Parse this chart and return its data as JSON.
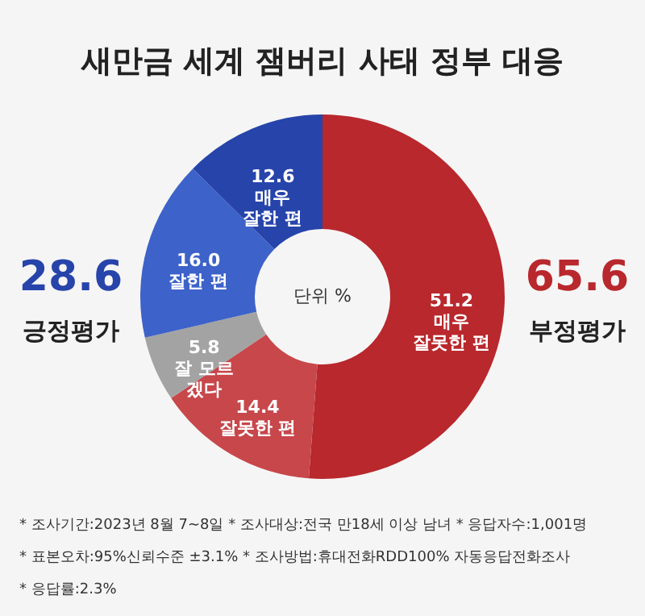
{
  "chart_data": {
    "type": "donut",
    "title": "새만금 세계 잼버리 사태 정부 대응",
    "categories": [
      "매우 잘못한 편",
      "잘못한 편",
      "잘 모르겠다",
      "잘한 편",
      "매우 잘한 편"
    ],
    "values": [
      51.2,
      14.4,
      5.8,
      16.0,
      12.6
    ],
    "colors": [
      "#b8282d",
      "#c7474b",
      "#a3a3a3",
      "#3d62c9",
      "#2644aa"
    ],
    "value_labels": [
      "51.2",
      "14.4",
      "5.8",
      "16.0",
      "12.6"
    ],
    "legend": false,
    "annotations": [
      "28.6",
      "긍정평가",
      "65.6",
      "부정평가",
      "단위 %",
      "* 조사기간:2023년 8월 7~8일  * 조사대상:전국 만18세 이상 남녀  * 응답자수:1,001명",
      "* 표본오차:95%신뢰수준 ±3.1%  * 조사방법:휴대전화RDD100% 자동응답전화조사",
      "* 응답률:2.3%"
    ]
  }
}
